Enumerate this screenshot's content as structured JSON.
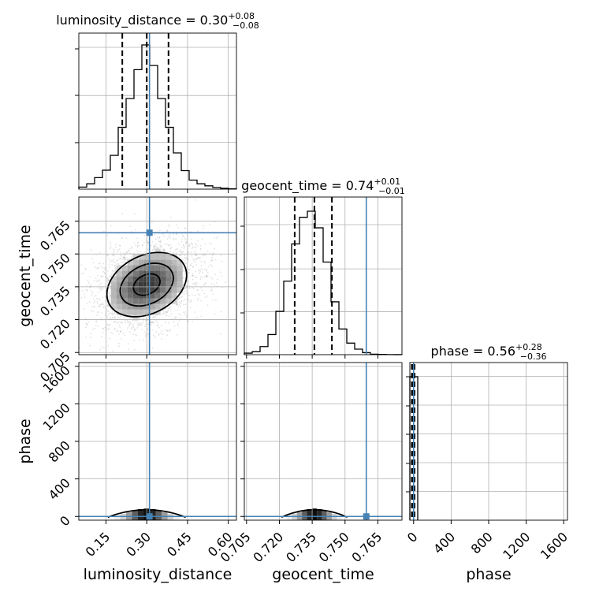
{
  "chart_data": {
    "type": "corner",
    "parameters": [
      {
        "name": "luminosity_distance",
        "median": "0.30",
        "plus": "+0.08",
        "minus": "−0.08",
        "lo": 0.05,
        "hi": 0.63,
        "q": [
          0.21,
          0.3,
          0.38
        ],
        "truth": 0.31,
        "ticks": [
          "0.15",
          "0.30",
          "0.45",
          "0.60"
        ],
        "tick_values": [
          0.15,
          0.3,
          0.45,
          0.6
        ]
      },
      {
        "name": "geocent_time",
        "median": "0.74",
        "plus": "+0.01",
        "minus": "−0.01",
        "lo": 0.704,
        "hi": 0.776,
        "q": [
          0.727,
          0.736,
          0.744
        ],
        "truth": 0.7597,
        "ticks": [
          "0.705",
          "0.720",
          "0.735",
          "0.750",
          "0.765"
        ],
        "tick_values": [
          0.705,
          0.72,
          0.735,
          0.75,
          0.765
        ]
      },
      {
        "name": "phase",
        "median": "0.56",
        "plus": "+0.28",
        "minus": "−0.36",
        "lo": -40,
        "hi": 1640,
        "q": [
          0.2,
          0.56,
          0.84
        ],
        "truth": 0.0,
        "ticks": [
          "0",
          "400",
          "800",
          "1200",
          "1600"
        ],
        "tick_values": [
          0,
          400,
          800,
          1200,
          1600
        ]
      }
    ],
    "histograms": {
      "luminosity_distance": {
        "edges": [
          0.05,
          0.079,
          0.108,
          0.137,
          0.166,
          0.195,
          0.224,
          0.253,
          0.282,
          0.311,
          0.34,
          0.369,
          0.398,
          0.427,
          0.456,
          0.485,
          0.514,
          0.543,
          0.572,
          0.601,
          0.63
        ],
        "counts": [
          0.5,
          1.3,
          2.8,
          4.6,
          8.2,
          15.0,
          22.0,
          29.0,
          35.0,
          30.0,
          22.0,
          15.0,
          8.8,
          4.5,
          2.2,
          1.3,
          0.8,
          0.4,
          0.2,
          0.1
        ]
      },
      "geocent_time": {
        "edges": [
          0.704,
          0.7076,
          0.7112,
          0.7148,
          0.7184,
          0.722,
          0.7256,
          0.7292,
          0.7328,
          0.7364,
          0.74,
          0.7436,
          0.7472,
          0.7508,
          0.7544,
          0.758,
          0.7616,
          0.7652,
          0.7688,
          0.7724,
          0.776
        ],
        "counts": [
          0.3,
          0.6,
          1.6,
          4.0,
          8.6,
          14.6,
          22.0,
          27.3,
          28.5,
          25.2,
          18.4,
          10.5,
          5.1,
          2.3,
          1.1,
          0.4,
          0.1,
          0.05,
          0.02,
          0.01
        ]
      },
      "phase": {
        "edges": [
          -40,
          44,
          128
        ],
        "counts": [
          1.0,
          0.0
        ]
      }
    },
    "contour_levels_sigma": [
      0.5,
      1.0,
      1.5
    ],
    "correlation_dl_time": 0.3,
    "truth_color": "#4682b4",
    "grid": true
  }
}
